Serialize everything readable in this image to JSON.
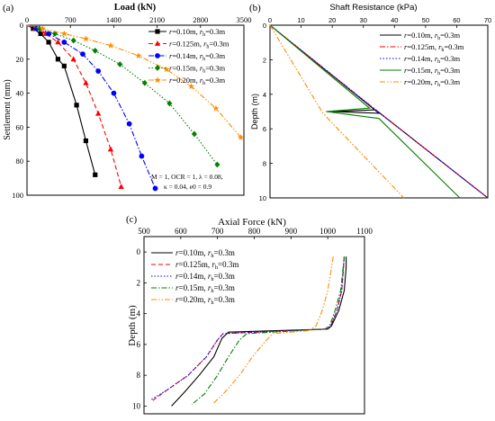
{
  "panels": [
    {
      "label": "(a)"
    },
    {
      "label": "(b)"
    },
    {
      "label": "(c)"
    }
  ],
  "annotations": {
    "line1": "M = 1, OCR = 1, λ = 0.08,",
    "line2": "κ = 0.04, e0 = 0.9"
  },
  "chart_data": [
    {
      "type": "line",
      "panel": "(a)",
      "title": "",
      "xlabel": "Load (kN)",
      "ylabel": "Settlement (mm)",
      "xlim": [
        0,
        3500
      ],
      "ylim": [
        0,
        100
      ],
      "y_inverted": true,
      "x_axis_position": "top",
      "xticks": [
        0,
        700,
        1400,
        2100,
        2800,
        3500
      ],
      "yticks": [
        0,
        20,
        40,
        60,
        80,
        100
      ],
      "legend_position": "top-right",
      "series": [
        {
          "name": "r=0.10m, rh=0.3m",
          "color": "#000000",
          "dash": "solid",
          "marker": "square",
          "x": [
            0,
            100,
            220,
            350,
            500,
            600,
            800,
            950,
            1100
          ],
          "y": [
            0,
            2,
            5,
            10,
            20,
            24,
            47,
            68,
            88
          ]
        },
        {
          "name": "r=0.125m, rh=0.3m",
          "color": "#ff0000",
          "dash": "dash",
          "marker": "triangle",
          "x": [
            0,
            130,
            300,
            500,
            750,
            950,
            1150,
            1350,
            1520
          ],
          "y": [
            0,
            2,
            5,
            10,
            20,
            34,
            52,
            73,
            95
          ]
        },
        {
          "name": "r=0.14m, rh=0.3m",
          "color": "#0000ff",
          "dash": "dashdot",
          "marker": "circle",
          "x": [
            0,
            150,
            350,
            600,
            900,
            1150,
            1400,
            1650,
            1850,
            2070
          ],
          "y": [
            0,
            2,
            5,
            10,
            17,
            27,
            40,
            58,
            77,
            96
          ]
        },
        {
          "name": "r=0.15m, rh=0.3m",
          "color": "#008000",
          "dash": "dot",
          "marker": "diamond",
          "x": [
            0,
            200,
            450,
            750,
            1100,
            1500,
            1900,
            2300,
            2700,
            3070
          ],
          "y": [
            0,
            2,
            5,
            9,
            15,
            23,
            34,
            46,
            64,
            82
          ]
        },
        {
          "name": "r=0.20m, rh=0.3m",
          "color": "#ff8c00",
          "dash": "dashdotdot",
          "marker": "star",
          "x": [
            0,
            250,
            600,
            950,
            1350,
            1800,
            2250,
            2650,
            3050,
            3450
          ],
          "y": [
            0,
            2,
            5,
            8,
            12,
            18,
            26,
            36,
            49,
            66
          ]
        }
      ]
    },
    {
      "type": "line",
      "panel": "(b)",
      "title": "",
      "xlabel": "Shaft Resistance (kPa)",
      "ylabel": "Depth (m)",
      "xlim": [
        0,
        70
      ],
      "ylim": [
        0,
        10
      ],
      "y_inverted": true,
      "x_axis_position": "top",
      "xticks": [
        0,
        10,
        20,
        30,
        40,
        50,
        60,
        70
      ],
      "yticks": [
        0,
        2,
        4,
        6,
        8,
        10
      ],
      "legend_position": "top-right",
      "series": [
        {
          "name": "r=0.10m, rh=0.3m",
          "color": "#000000",
          "dash": "solid",
          "x": [
            0,
            35,
            20,
            34,
            70
          ],
          "y": [
            0,
            5.1,
            5.0,
            4.9,
            10
          ]
        },
        {
          "name": "r=0.125m, rh=0.3m",
          "color": "#ff0000",
          "dash": "dashdot",
          "x": [
            0,
            35,
            70
          ],
          "y": [
            0,
            5.05,
            10
          ]
        },
        {
          "name": "r=0.14m, rh=0.3m",
          "color": "#0000ff",
          "dash": "dot",
          "x": [
            0,
            35,
            70
          ],
          "y": [
            0,
            5.05,
            10
          ]
        },
        {
          "name": "r=0.15m, rh=0.3m",
          "color": "#008000",
          "dash": "solid",
          "x": [
            0,
            32,
            18,
            35,
            61
          ],
          "y": [
            0,
            4.8,
            5.0,
            5.4,
            10
          ]
        },
        {
          "name": "r=0.20m, rh=0.3m",
          "color": "#ff8c00",
          "dash": "dashdotdot",
          "x": [
            0,
            17,
            43
          ],
          "y": [
            0,
            5.1,
            10
          ]
        }
      ]
    },
    {
      "type": "line",
      "panel": "(c)",
      "title": "",
      "xlabel": "Axial Force (kN)",
      "ylabel": "Depth (m)",
      "xlim": [
        500,
        1100
      ],
      "ylim": [
        -1,
        10.5
      ],
      "y_inverted": true,
      "x_axis_position": "top",
      "xticks": [
        500,
        600,
        700,
        800,
        900,
        1000,
        1100
      ],
      "yticks": [
        0,
        2,
        4,
        6,
        8,
        10
      ],
      "legend_position": "top-left",
      "series": [
        {
          "name": "r=0.10m, rh=0.3m",
          "color": "#000000",
          "dash": "solid",
          "x": [
            1050,
            1050,
            1045,
            1030,
            1010,
            1000,
            730,
            712,
            690,
            650,
            610,
            575
          ],
          "y": [
            0.3,
            1,
            2.5,
            3.8,
            4.8,
            5.0,
            5.2,
            5.6,
            6.8,
            8.0,
            9.1,
            10
          ]
        },
        {
          "name": "r=0.125m, rh=0.3m",
          "color": "#ff0000",
          "dash": "dash",
          "x": [
            1045,
            1043,
            1038,
            1025,
            1008,
            998,
            715,
            700,
            670,
            620,
            560,
            520
          ],
          "y": [
            0.3,
            1,
            2.5,
            3.8,
            4.8,
            5.0,
            5.3,
            5.7,
            6.8,
            8.0,
            9.0,
            9.7
          ]
        },
        {
          "name": "r=0.14m, rh=0.3m",
          "color": "#0000ff",
          "dash": "dot",
          "x": [
            1045,
            1043,
            1038,
            1025,
            1008,
            998,
            715,
            700,
            670,
            620,
            560,
            518
          ],
          "y": [
            0.3,
            1,
            2.5,
            3.8,
            4.8,
            5.0,
            5.3,
            5.7,
            6.8,
            8.0,
            9.0,
            9.6
          ]
        },
        {
          "name": "r=0.15m, rh=0.3m",
          "color": "#008000",
          "dash": "dashdot",
          "x": [
            1045,
            1042,
            1035,
            1020,
            1005,
            992,
            780,
            760,
            730,
            700,
            665,
            630
          ],
          "y": [
            0.3,
            1,
            2.5,
            3.8,
            4.8,
            5.0,
            5.3,
            5.7,
            6.8,
            8.0,
            9.2,
            9.9
          ]
        },
        {
          "name": "r=0.20m, rh=0.3m",
          "color": "#ff8c00",
          "dash": "dashdotdot",
          "x": [
            1015,
            1010,
            1000,
            985,
            968,
            950,
            850,
            830,
            795,
            760,
            720,
            690
          ],
          "y": [
            0.3,
            1,
            2.5,
            3.8,
            4.8,
            5.1,
            5.3,
            5.8,
            6.8,
            8.0,
            9.1,
            9.8
          ]
        }
      ]
    }
  ]
}
